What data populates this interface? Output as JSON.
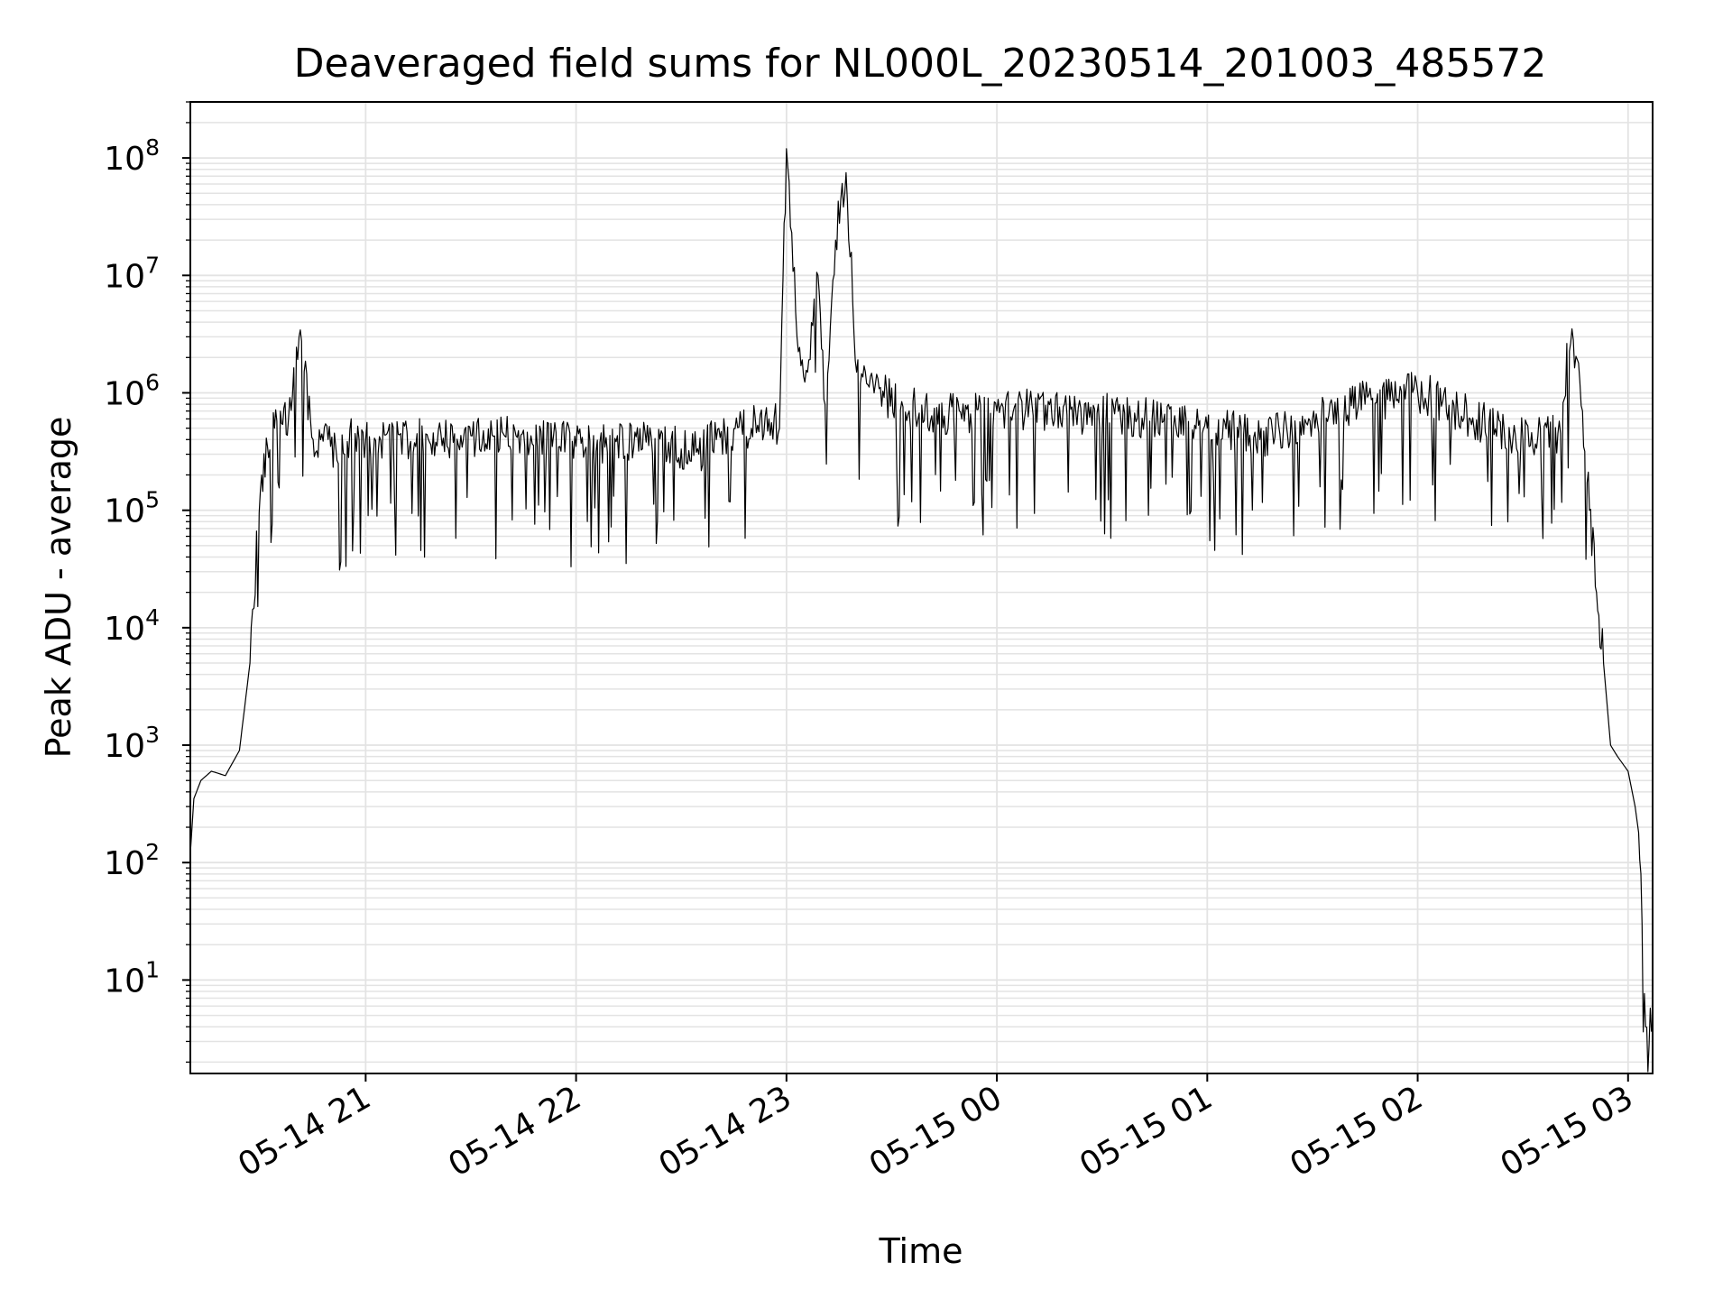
{
  "chart_data": {
    "type": "line",
    "title": "Deaveraged field sums for NL000L_20230514_201003_485572",
    "xlabel": "Time",
    "ylabel": "Peak ADU - average",
    "yscale": "log",
    "ylim": [
      1.6,
      300000000
    ],
    "xlim": [
      "2023-05-14 20:10",
      "2023-05-15 03:07"
    ],
    "grid": true,
    "colors": {
      "line": "#000000",
      "grid": "#e3e3e3",
      "axes": "#000000"
    },
    "x_ticks": [
      {
        "t": "2023-05-14 21:00",
        "label": "05-14 21"
      },
      {
        "t": "2023-05-14 22:00",
        "label": "05-14 22"
      },
      {
        "t": "2023-05-14 23:00",
        "label": "05-14 23"
      },
      {
        "t": "2023-05-15 00:00",
        "label": "05-15 00"
      },
      {
        "t": "2023-05-15 01:00",
        "label": "05-15 01"
      },
      {
        "t": "2023-05-15 02:00",
        "label": "05-15 02"
      },
      {
        "t": "2023-05-15 03:00",
        "label": "05-15 03"
      }
    ],
    "y_ticks": [
      {
        "value": 10,
        "base": "10",
        "exp": "1"
      },
      {
        "value": 100,
        "base": "10",
        "exp": "2"
      },
      {
        "value": 1000,
        "base": "10",
        "exp": "3"
      },
      {
        "value": 10000,
        "base": "10",
        "exp": "4"
      },
      {
        "value": 100000,
        "base": "10",
        "exp": "5"
      },
      {
        "value": 1000000,
        "base": "10",
        "exp": "6"
      },
      {
        "value": 10000000,
        "base": "10",
        "exp": "7"
      },
      {
        "value": 100000000,
        "base": "10",
        "exp": "8"
      }
    ],
    "series": [
      {
        "x": [
          "2023-05-14 20:10",
          "2023-05-14 20:11",
          "2023-05-14 20:13",
          "2023-05-14 20:16",
          "2023-05-14 20:20",
          "2023-05-14 20:24",
          "2023-05-14 20:27",
          "2023-05-14 20:30",
          "2023-05-14 20:32",
          "2023-05-14 20:34",
          "2023-05-14 20:36",
          "2023-05-14 20:38",
          "2023-05-14 20:41",
          "2023-05-14 20:45",
          "2023-05-14 20:50",
          "2023-05-14 20:54",
          "2023-05-14 20:57",
          "2023-05-14 21:00",
          "2023-05-14 21:20",
          "2023-05-14 21:40",
          "2023-05-14 22:00",
          "2023-05-14 22:20",
          "2023-05-14 22:35",
          "2023-05-14 22:40",
          "2023-05-14 22:50",
          "2023-05-14 22:55",
          "2023-05-14 22:58",
          "2023-05-14 23:00",
          "2023-05-14 23:03",
          "2023-05-14 23:06",
          "2023-05-14 23:09",
          "2023-05-14 23:11",
          "2023-05-14 23:14",
          "2023-05-14 23:17",
          "2023-05-14 23:20",
          "2023-05-14 23:25",
          "2023-05-14 23:35",
          "2023-05-14 23:50",
          "2023-05-15 00:00",
          "2023-05-15 00:20",
          "2023-05-15 00:40",
          "2023-05-15 01:00",
          "2023-05-15 01:15",
          "2023-05-15 01:30",
          "2023-05-15 01:45",
          "2023-05-15 02:00",
          "2023-05-15 02:15",
          "2023-05-15 02:30",
          "2023-05-15 02:40",
          "2023-05-15 02:44",
          "2023-05-15 02:47",
          "2023-05-15 02:49",
          "2023-05-15 02:51",
          "2023-05-15 02:53",
          "2023-05-15 02:55",
          "2023-05-15 02:57",
          "2023-05-15 03:00",
          "2023-05-15 03:02",
          "2023-05-15 03:03",
          "2023-05-15 03:04",
          "2023-05-15 03:05",
          "2023-05-15 03:07"
        ],
        "y": [
          120,
          350,
          500,
          600,
          550,
          900,
          5000,
          150000,
          350000,
          500000,
          550000,
          600000,
          3000000,
          400000,
          350000,
          300000,
          450000,
          400000,
          380000,
          420000,
          350000,
          380000,
          300000,
          400000,
          500000,
          600000,
          500000,
          120000000,
          3000000,
          1500000,
          10000000,
          800000,
          20000000,
          75000000,
          1500000,
          1000000,
          700000,
          600000,
          700000,
          650000,
          600000,
          500000,
          400000,
          600000,
          800000,
          1000000,
          600000,
          400000,
          450000,
          3500000,
          700000,
          100000,
          20000,
          5000,
          1000,
          800,
          600,
          300,
          180,
          30,
          4,
          4
        ]
      }
    ]
  }
}
